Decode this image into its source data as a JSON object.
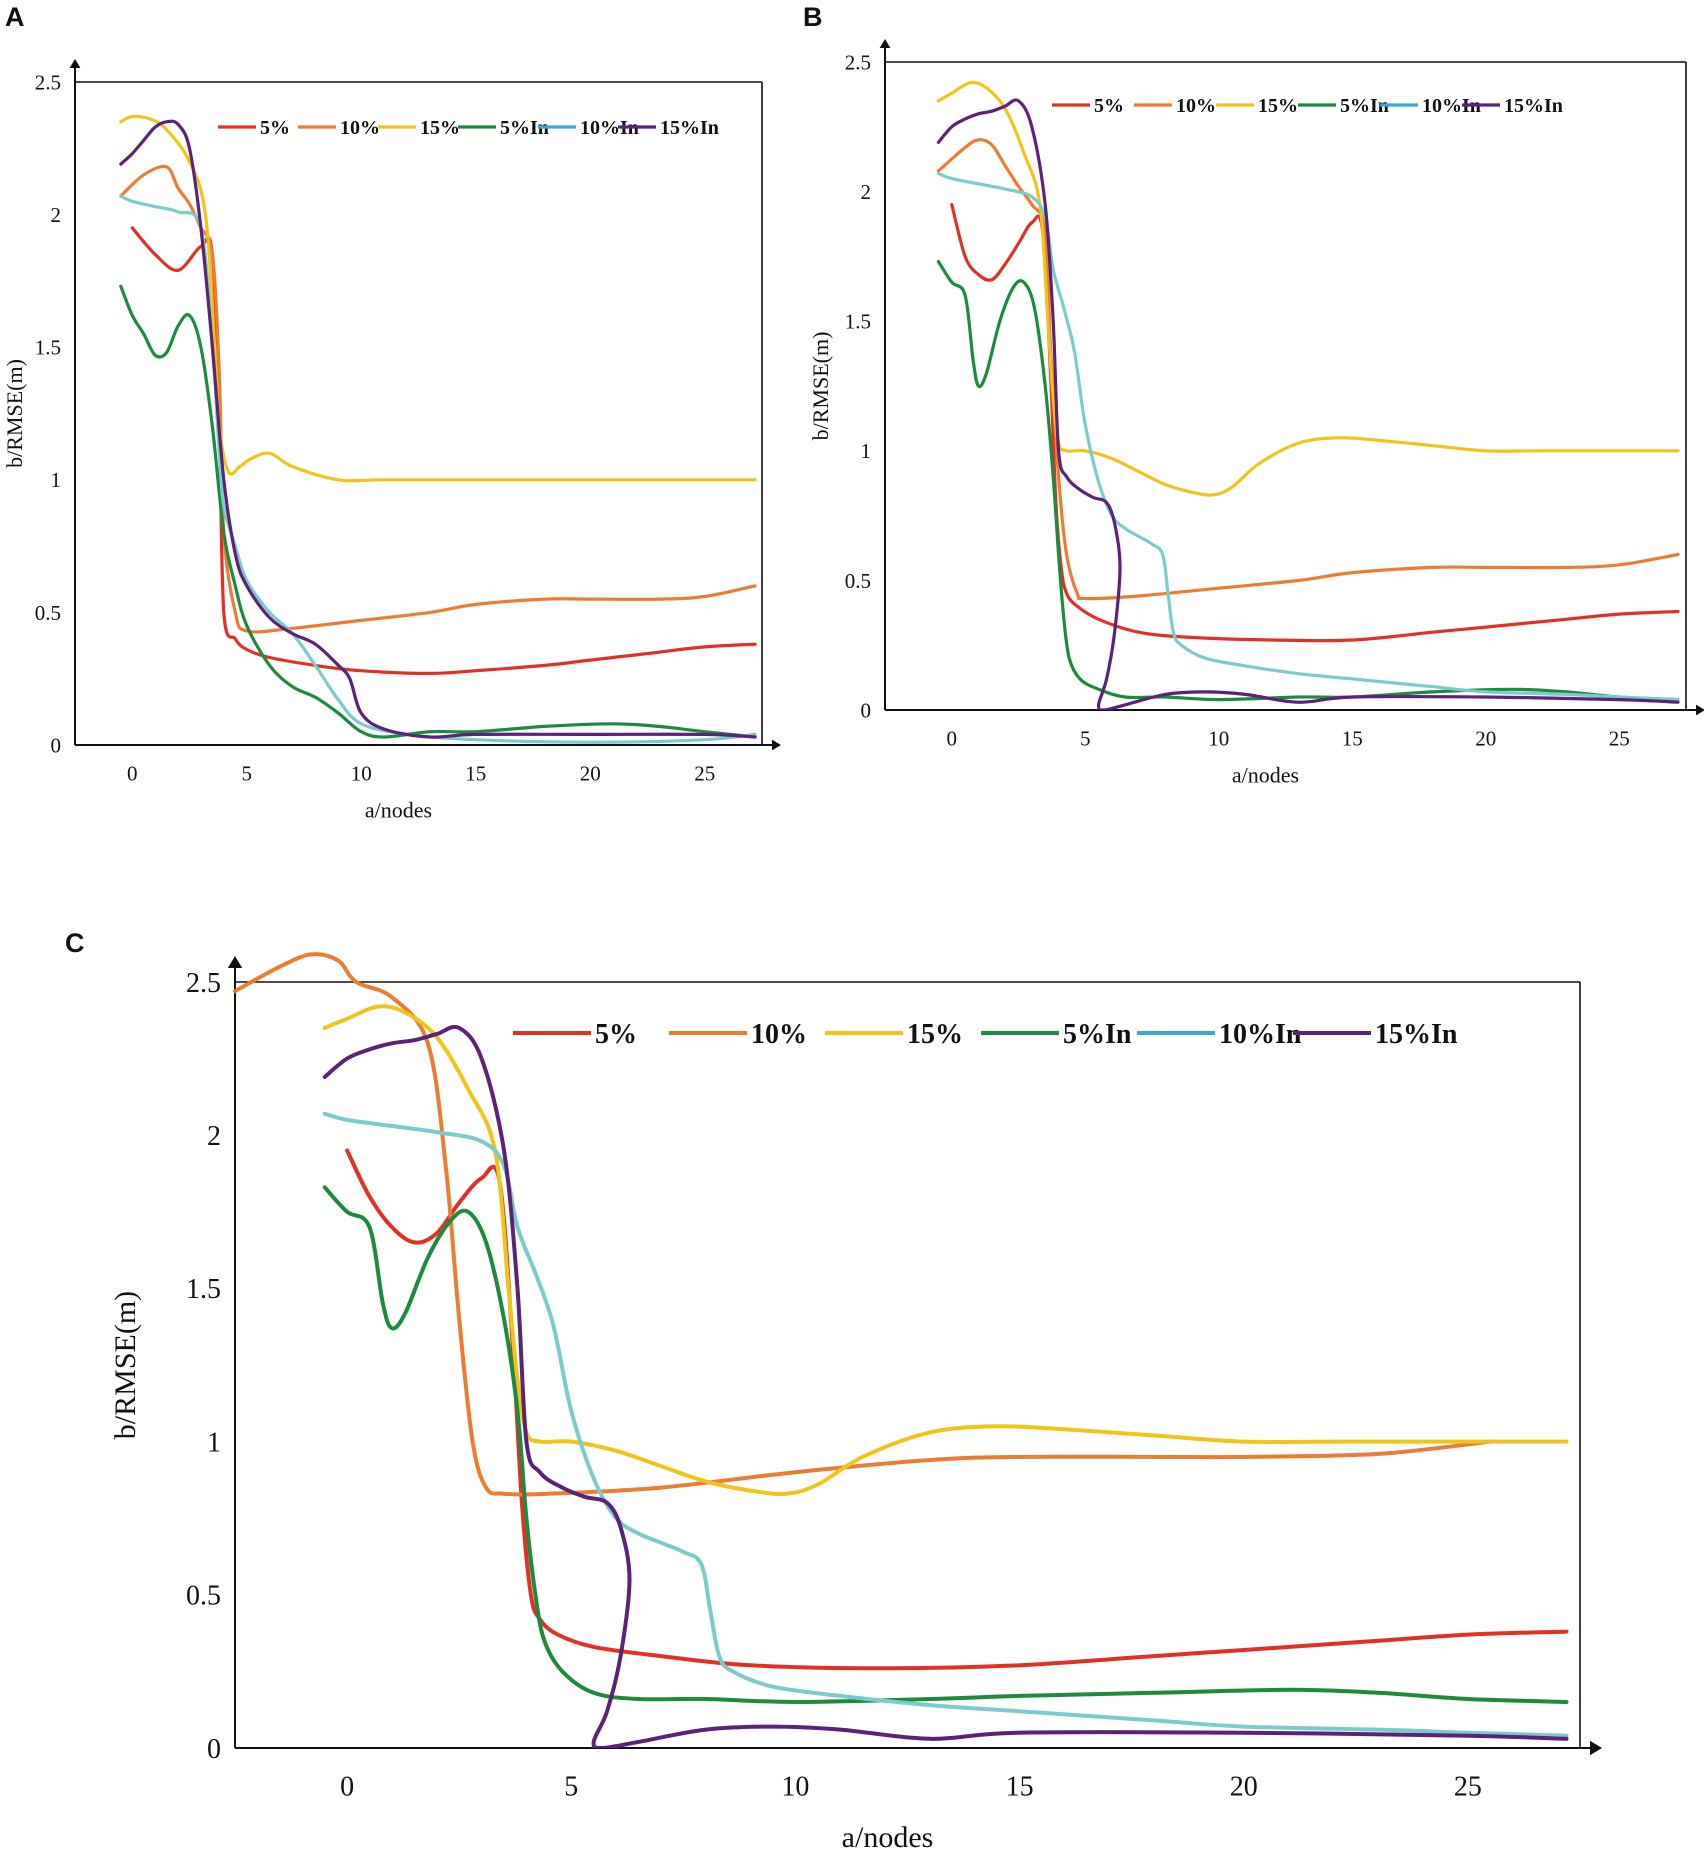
{
  "colors": {
    "5%": "#e23026",
    "10%": "#ee7b32",
    "15%": "#f1c419",
    "5%In": "#1e8a3e",
    "10%In": "#3aa7d6",
    "15%In": "#5b2378",
    "10%In_curve": "#7ccbcc",
    "axis": "#111111"
  },
  "chart_data": [
    {
      "panel": "A",
      "type": "line",
      "xlabel": "a/nodes",
      "ylabel": "b/RMSE(m)",
      "xticks": [
        0,
        5,
        10,
        15,
        20,
        25
      ],
      "yticks": [
        "0",
        "0.5",
        "1",
        "1.5",
        "2",
        "2.5"
      ],
      "xlim": [
        -2.5,
        27.5
      ],
      "ylim": [
        0,
        2.5
      ],
      "legend": [
        "5%",
        "10%",
        "15%",
        "5%In",
        "10%In",
        "15%In"
      ],
      "legend_position": "top-right",
      "series": [
        {
          "name": "5%",
          "x": [
            0,
            1,
            2,
            3,
            3.5,
            3.8,
            4,
            4.5,
            5,
            6,
            8,
            10,
            13,
            15,
            18,
            20,
            23,
            25,
            27.2
          ],
          "y": [
            1.95,
            1.85,
            1.79,
            1.88,
            1.85,
            1.2,
            0.5,
            0.4,
            0.36,
            0.33,
            0.3,
            0.28,
            0.27,
            0.28,
            0.3,
            0.32,
            0.35,
            0.37,
            0.38
          ]
        },
        {
          "name": "10%",
          "x": [
            -0.5,
            0.5,
            1.5,
            2,
            2.5,
            3,
            3.5,
            3.8,
            4,
            4.5,
            5,
            7,
            10,
            13,
            15,
            18,
            20,
            23,
            25,
            27.2
          ],
          "y": [
            2.07,
            2.15,
            2.18,
            2.1,
            2.04,
            1.95,
            1.85,
            1.4,
            0.8,
            0.5,
            0.43,
            0.44,
            0.47,
            0.5,
            0.53,
            0.55,
            0.55,
            0.55,
            0.56,
            0.6
          ]
        },
        {
          "name": "15%",
          "x": [
            -0.5,
            0,
            0.8,
            1.5,
            2.5,
            3.2,
            3.6,
            3.8,
            4.2,
            4.7,
            5.2,
            6,
            7,
            9,
            11,
            15,
            20,
            25,
            27.2
          ],
          "y": [
            2.35,
            2.37,
            2.36,
            2.32,
            2.2,
            2.0,
            1.5,
            1.2,
            1.03,
            1.05,
            1.08,
            1.1,
            1.05,
            1.0,
            1.0,
            1.0,
            1.0,
            1.0,
            1.0
          ]
        },
        {
          "name": "5%In",
          "x": [
            -0.5,
            0,
            0.5,
            1,
            1.5,
            2,
            2.5,
            3,
            3.5,
            4,
            4.5,
            5,
            6,
            7,
            8,
            9,
            10,
            11,
            13,
            15,
            18,
            21,
            23,
            25,
            27.2
          ],
          "y": [
            1.73,
            1.62,
            1.55,
            1.47,
            1.48,
            1.58,
            1.62,
            1.5,
            1.2,
            0.8,
            0.6,
            0.45,
            0.3,
            0.22,
            0.18,
            0.12,
            0.05,
            0.03,
            0.05,
            0.05,
            0.07,
            0.08,
            0.07,
            0.05,
            0.03
          ]
        },
        {
          "name": "10%In",
          "x": [
            -0.5,
            0,
            1,
            2,
            3,
            3.5,
            3.8,
            4,
            4.5,
            5,
            6,
            7,
            8,
            9,
            10,
            12,
            15,
            20,
            25,
            27.2
          ],
          "y": [
            2.07,
            2.05,
            2.03,
            2.01,
            1.95,
            1.5,
            1.1,
            0.9,
            0.75,
            0.62,
            0.5,
            0.42,
            0.3,
            0.17,
            0.08,
            0.04,
            0.02,
            0.01,
            0.02,
            0.04
          ]
        },
        {
          "name": "15%In",
          "x": [
            -0.5,
            0,
            0.5,
            1,
            1.5,
            2,
            2.5,
            3,
            3.5,
            4,
            4.5,
            5,
            6,
            7,
            8,
            9,
            9.5,
            10,
            11,
            13,
            15,
            20,
            25,
            27.2
          ],
          "y": [
            2.19,
            2.23,
            2.28,
            2.33,
            2.35,
            2.34,
            2.25,
            1.95,
            1.5,
            1.0,
            0.72,
            0.6,
            0.48,
            0.42,
            0.38,
            0.3,
            0.25,
            0.12,
            0.06,
            0.03,
            0.04,
            0.04,
            0.04,
            0.03
          ]
        }
      ]
    },
    {
      "panel": "B",
      "type": "line",
      "xlabel": "a/nodes",
      "ylabel": "b/RMSE(m)",
      "xticks": [
        0,
        5,
        10,
        15,
        20,
        25
      ],
      "yticks": [
        "0",
        "0.5",
        "1",
        "1.5",
        "2",
        "2.5"
      ],
      "xlim": [
        -2.5,
        27.5
      ],
      "ylim": [
        0,
        2.5
      ],
      "legend": [
        "5%",
        "10%",
        "15%",
        "5%In",
        "10%In",
        "15%In"
      ],
      "legend_position": "top-right",
      "series": [
        {
          "name": "5%",
          "x": [
            0,
            0.5,
            1,
            1.5,
            2,
            2.5,
            3,
            3.4,
            3.7,
            3.9,
            4.1,
            4.3,
            4.7,
            5.5,
            7,
            9,
            12,
            15,
            18,
            20,
            23,
            25,
            27.2
          ],
          "y": [
            1.95,
            1.75,
            1.68,
            1.66,
            1.72,
            1.8,
            1.88,
            1.85,
            1.3,
            0.8,
            0.55,
            0.45,
            0.4,
            0.35,
            0.3,
            0.28,
            0.27,
            0.27,
            0.3,
            0.32,
            0.35,
            0.37,
            0.38
          ]
        },
        {
          "name": "10%",
          "x": [
            -0.5,
            0.5,
            1,
            1.5,
            2,
            2.5,
            3,
            3.5,
            3.7,
            4,
            4.3,
            4.7,
            5,
            7,
            10,
            13,
            15,
            18,
            20,
            23,
            25,
            27.2
          ],
          "y": [
            2.08,
            2.17,
            2.2,
            2.18,
            2.1,
            2.02,
            1.95,
            1.85,
            1.4,
            0.9,
            0.6,
            0.45,
            0.43,
            0.44,
            0.47,
            0.5,
            0.53,
            0.55,
            0.55,
            0.55,
            0.56,
            0.6
          ]
        },
        {
          "name": "15%",
          "x": [
            -0.5,
            0,
            0.7,
            1.3,
            2,
            2.7,
            3.3,
            3.6,
            3.8,
            4,
            4.3,
            5,
            6,
            7,
            8,
            9,
            9.8,
            10.5,
            11.5,
            13,
            14.5,
            16,
            18,
            20,
            22,
            25,
            27.2
          ],
          "y": [
            2.35,
            2.38,
            2.42,
            2.4,
            2.32,
            2.15,
            1.95,
            1.5,
            1.2,
            1.03,
            1.0,
            1.0,
            0.97,
            0.92,
            0.87,
            0.84,
            0.83,
            0.86,
            0.95,
            1.03,
            1.05,
            1.04,
            1.02,
            1.0,
            1.0,
            1.0,
            1.0
          ]
        },
        {
          "name": "5%In",
          "x": [
            -0.5,
            0,
            0.5,
            0.8,
            1,
            1.3,
            1.8,
            2.3,
            2.7,
            3.1,
            3.5,
            3.8,
            4,
            4.2,
            4.4,
            4.8,
            5.5,
            6.5,
            8,
            10,
            13,
            15,
            18,
            21,
            23,
            25,
            27.2
          ],
          "y": [
            1.73,
            1.65,
            1.6,
            1.35,
            1.25,
            1.3,
            1.5,
            1.63,
            1.65,
            1.55,
            1.25,
            0.9,
            0.6,
            0.35,
            0.2,
            0.12,
            0.08,
            0.05,
            0.05,
            0.04,
            0.05,
            0.05,
            0.07,
            0.08,
            0.07,
            0.05,
            0.04
          ]
        },
        {
          "name": "10%In",
          "x": [
            -0.5,
            0,
            1,
            2,
            3,
            3.5,
            3.8,
            4.2,
            4.6,
            5,
            5.5,
            6,
            6.5,
            7,
            7.5,
            7.9,
            8.1,
            8.3,
            8.6,
            9.5,
            11,
            13,
            15,
            18,
            20,
            23,
            25,
            27.2
          ],
          "y": [
            2.07,
            2.05,
            2.03,
            2.01,
            1.98,
            1.9,
            1.7,
            1.55,
            1.38,
            1.1,
            0.88,
            0.75,
            0.7,
            0.67,
            0.64,
            0.6,
            0.45,
            0.3,
            0.25,
            0.2,
            0.17,
            0.14,
            0.12,
            0.09,
            0.07,
            0.06,
            0.05,
            0.04
          ]
        },
        {
          "name": "15%In",
          "x": [
            -0.5,
            0,
            0.5,
            1,
            1.5,
            2,
            2.5,
            3,
            3.5,
            3.8,
            4,
            4.3,
            4.8,
            5.3,
            5.8,
            6.1,
            6.3,
            6.1,
            5.8,
            5.5,
            5.7,
            6.5,
            8,
            9.5,
            11,
            13,
            15,
            20,
            25,
            27.2
          ],
          "y": [
            2.19,
            2.25,
            2.28,
            2.3,
            2.31,
            2.33,
            2.35,
            2.25,
            1.95,
            1.5,
            1.0,
            0.9,
            0.85,
            0.82,
            0.8,
            0.72,
            0.55,
            0.3,
            0.12,
            0.02,
            0.0,
            0.02,
            0.06,
            0.07,
            0.06,
            0.03,
            0.05,
            0.05,
            0.04,
            0.03
          ]
        }
      ]
    },
    {
      "panel": "C",
      "type": "line",
      "xlabel": "a/nodes",
      "ylabel": "b/RMSE(m)",
      "xticks": [
        0,
        5,
        10,
        15,
        20,
        25
      ],
      "yticks": [
        "0",
        "0.5",
        "1",
        "1.5",
        "2",
        "2.5"
      ],
      "xlim": [
        -2.5,
        27.5
      ],
      "ylim": [
        0,
        2.5
      ],
      "legend": [
        "5%",
        "10%",
        "15%",
        "5%In",
        "10%In",
        "15%In"
      ],
      "legend_position": "top-right",
      "series": [
        {
          "name": "5%",
          "x": [
            0,
            0.5,
            1,
            1.5,
            2,
            2.5,
            3,
            3.4,
            3.7,
            3.9,
            4.1,
            4.3,
            4.7,
            5.5,
            7,
            9,
            12,
            15,
            18,
            20,
            23,
            25,
            27.2
          ],
          "y": [
            1.95,
            1.8,
            1.7,
            1.65,
            1.68,
            1.78,
            1.86,
            1.85,
            1.3,
            0.8,
            0.5,
            0.42,
            0.37,
            0.33,
            0.3,
            0.27,
            0.26,
            0.27,
            0.3,
            0.32,
            0.35,
            0.37,
            0.38
          ]
        },
        {
          "name": "10%",
          "x": [
            -2.5,
            -1.5,
            -0.8,
            -0.2,
            0.2,
            1,
            1.8,
            2.2,
            2.5,
            2.8,
            3.1,
            3.5,
            4.5,
            7,
            10,
            13,
            15,
            18,
            20,
            23,
            25.5
          ],
          "y": [
            2.47,
            2.55,
            2.59,
            2.57,
            2.5,
            2.45,
            2.3,
            1.9,
            1.4,
            1.0,
            0.85,
            0.83,
            0.83,
            0.85,
            0.9,
            0.94,
            0.95,
            0.95,
            0.95,
            0.96,
            1.0
          ]
        },
        {
          "name": "15%",
          "x": [
            -0.5,
            0,
            0.7,
            1.3,
            2,
            2.7,
            3.3,
            3.6,
            3.8,
            4,
            4.3,
            5,
            6,
            7,
            8,
            9,
            9.8,
            10.5,
            11.5,
            13,
            14.5,
            16,
            18,
            20,
            22,
            25,
            27.2
          ],
          "y": [
            2.35,
            2.38,
            2.42,
            2.4,
            2.32,
            2.15,
            1.95,
            1.5,
            1.2,
            1.03,
            1.0,
            1.0,
            0.97,
            0.92,
            0.87,
            0.84,
            0.83,
            0.86,
            0.95,
            1.03,
            1.05,
            1.04,
            1.02,
            1.0,
            1.0,
            1.0,
            1.0
          ]
        },
        {
          "name": "5%In",
          "x": [
            -0.5,
            0,
            0.5,
            0.8,
            1,
            1.3,
            1.8,
            2.3,
            2.7,
            3.1,
            3.5,
            3.8,
            4,
            4.2,
            4.4,
            4.8,
            5.5,
            6.5,
            8,
            10,
            13,
            15,
            18,
            21,
            23,
            25,
            27.2
          ],
          "y": [
            1.83,
            1.75,
            1.7,
            1.45,
            1.37,
            1.42,
            1.6,
            1.72,
            1.75,
            1.65,
            1.4,
            1.1,
            0.75,
            0.5,
            0.35,
            0.25,
            0.18,
            0.16,
            0.16,
            0.15,
            0.16,
            0.17,
            0.18,
            0.19,
            0.18,
            0.16,
            0.15
          ]
        },
        {
          "name": "10%In",
          "x": [
            -0.5,
            0,
            1,
            2,
            3,
            3.5,
            3.8,
            4.2,
            4.6,
            5,
            5.5,
            6,
            6.5,
            7,
            7.5,
            7.9,
            8.1,
            8.3,
            8.6,
            9.5,
            11,
            13,
            15,
            18,
            20,
            23,
            25,
            27.2
          ],
          "y": [
            2.07,
            2.05,
            2.03,
            2.01,
            1.98,
            1.9,
            1.7,
            1.55,
            1.38,
            1.1,
            0.88,
            0.75,
            0.7,
            0.67,
            0.64,
            0.6,
            0.45,
            0.3,
            0.25,
            0.2,
            0.17,
            0.14,
            0.12,
            0.09,
            0.07,
            0.06,
            0.05,
            0.04
          ]
        },
        {
          "name": "15%In",
          "x": [
            -0.5,
            0,
            0.5,
            1,
            1.5,
            2,
            2.5,
            3,
            3.5,
            3.8,
            4,
            4.3,
            4.8,
            5.3,
            5.8,
            6.1,
            6.3,
            6.1,
            5.8,
            5.5,
            5.7,
            6.5,
            8,
            9.5,
            11,
            13,
            15,
            20,
            25,
            27.2
          ],
          "y": [
            2.19,
            2.25,
            2.28,
            2.3,
            2.31,
            2.33,
            2.35,
            2.25,
            1.95,
            1.5,
            1.0,
            0.9,
            0.85,
            0.82,
            0.8,
            0.72,
            0.55,
            0.3,
            0.12,
            0.02,
            0.0,
            0.02,
            0.06,
            0.07,
            0.06,
            0.03,
            0.05,
            0.05,
            0.04,
            0.03
          ]
        }
      ]
    }
  ],
  "panels": {
    "A": {
      "label": "A"
    },
    "B": {
      "label": "B"
    },
    "C": {
      "label": "C"
    }
  }
}
